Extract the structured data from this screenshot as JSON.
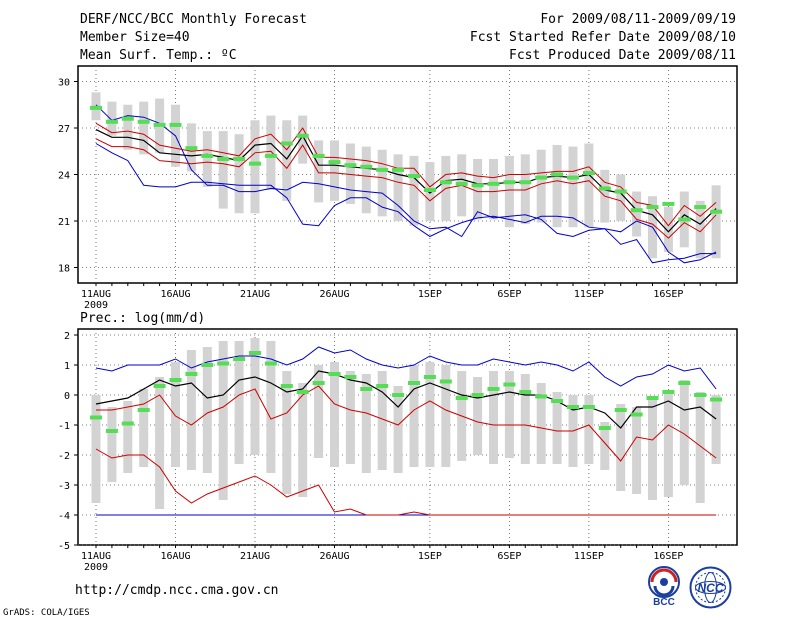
{
  "header": {
    "title": "DERF/NCC/BCC Monthly Forecast",
    "member_size": "Member Size=40",
    "variable": "Mean Surf. Temp.: ºC",
    "period": "For 2009/08/11-2009/09/19",
    "start_date": "Fcst Started Refer Date 2009/08/10",
    "produced_date": "Fcst Produced Date 2009/08/11"
  },
  "footer": {
    "url": "http://cmdp.ncc.cma.gov.cn",
    "grads": "GrADS: COLA/IGES",
    "logo_bcc": "BCC",
    "logo_ncc": "NCC"
  },
  "colors": {
    "max_min": "#0000cc",
    "spread": "#cc0000",
    "mean": "#000000",
    "box": "#d3d3d3",
    "obs": "#55dd55"
  },
  "chart_data": [
    {
      "type": "line",
      "title": "Mean Surf. Temp.: ºC",
      "ylim": [
        17,
        31
      ],
      "yticks": [
        18,
        21,
        24,
        27,
        30
      ],
      "xlabels": [
        "11AUG",
        "16AUG",
        "21AUG",
        "26AUG",
        "1SEP",
        "6SEP",
        "11SEP",
        "16SEP"
      ],
      "xlabel_year": "2009",
      "xlabel_idx": [
        0,
        5,
        10,
        15,
        21,
        26,
        31,
        36
      ],
      "n_days": 40,
      "series": [
        {
          "name": "max",
          "values": [
            28.5,
            27.5,
            27.8,
            27.7,
            27.3,
            26.5,
            24.3,
            23.3,
            23.3,
            22.9,
            22.9,
            23.1,
            23.0,
            23.5,
            23.4,
            23.2,
            23.0,
            22.9,
            22.8,
            22.0,
            21.0,
            20.5,
            20.6,
            20.0,
            21.6,
            21.2,
            21.3,
            21.4,
            21.1,
            20.2,
            20.0,
            20.4,
            20.5,
            20.3,
            21.0,
            20.6,
            19.0,
            18.3,
            18.5,
            19.0
          ]
        },
        {
          "name": "spread_high",
          "values": [
            27.3,
            26.7,
            26.8,
            26.6,
            25.9,
            25.7,
            25.5,
            25.6,
            25.4,
            25.2,
            26.3,
            26.6,
            25.6,
            27.0,
            25.1,
            25.1,
            25.0,
            24.9,
            24.7,
            24.4,
            24.4,
            23.2,
            24.0,
            24.1,
            23.9,
            23.8,
            24.0,
            24.0,
            24.1,
            24.2,
            24.2,
            24.5,
            23.5,
            23.2,
            22.2,
            22.0,
            20.7,
            22.0,
            21.3,
            22.2
          ]
        },
        {
          "name": "mean",
          "values": [
            26.9,
            26.4,
            26.4,
            26.2,
            25.4,
            25.3,
            25.2,
            25.3,
            25.1,
            24.9,
            25.9,
            26.0,
            25.0,
            26.5,
            24.6,
            24.6,
            24.5,
            24.4,
            24.3,
            24.0,
            23.8,
            22.8,
            23.6,
            23.7,
            23.4,
            23.4,
            23.5,
            23.5,
            23.8,
            23.9,
            23.8,
            24.0,
            23.0,
            22.8,
            21.7,
            21.4,
            20.3,
            21.4,
            20.8,
            21.8
          ]
        },
        {
          "name": "spread_low",
          "values": [
            26.3,
            25.8,
            25.8,
            25.6,
            24.9,
            24.8,
            24.7,
            24.8,
            24.7,
            24.5,
            25.4,
            25.5,
            24.4,
            25.9,
            24.1,
            24.1,
            24.0,
            23.9,
            23.8,
            23.5,
            23.3,
            22.3,
            23.1,
            23.3,
            22.9,
            22.9,
            23.0,
            23.0,
            23.4,
            23.6,
            23.4,
            23.6,
            22.6,
            22.3,
            21.1,
            20.8,
            19.9,
            20.9,
            20.3,
            21.4
          ]
        },
        {
          "name": "min",
          "values": [
            26.0,
            25.4,
            24.9,
            23.3,
            23.2,
            23.2,
            23.5,
            23.5,
            23.4,
            23.3,
            23.3,
            23.3,
            22.5,
            20.8,
            20.7,
            22.0,
            22.5,
            22.5,
            21.9,
            21.6,
            20.7,
            20.0,
            20.5,
            20.9,
            21.2,
            21.3,
            21.1,
            20.9,
            21.3,
            21.3,
            21.2,
            20.6,
            20.5,
            19.5,
            19.8,
            18.3,
            18.5,
            18.6,
            18.9,
            18.9
          ]
        },
        {
          "name": "box_top",
          "values": [
            29.3,
            28.7,
            28.5,
            28.7,
            28.9,
            28.5,
            27.3,
            26.8,
            26.8,
            26.6,
            27.5,
            27.8,
            27.5,
            27.8,
            26.2,
            26.2,
            26.0,
            25.8,
            25.6,
            25.3,
            25.2,
            24.8,
            25.2,
            25.3,
            25.0,
            25.0,
            25.2,
            25.3,
            25.6,
            25.9,
            25.8,
            26.0,
            24.3,
            24.0,
            22.9,
            22.6,
            21.9,
            22.9,
            22.3,
            23.3
          ]
        },
        {
          "name": "box_bottom",
          "values": [
            27.5,
            26.5,
            25.6,
            25.3,
            25.4,
            24.5,
            24.2,
            23.2,
            21.8,
            21.5,
            21.5,
            23.0,
            22.3,
            24.7,
            22.2,
            22.3,
            22.1,
            21.5,
            21.3,
            21.0,
            20.7,
            21.0,
            21.0,
            21.3,
            21.1,
            21.1,
            20.6,
            20.8,
            20.9,
            20.6,
            20.6,
            20.6,
            20.9,
            21.0,
            20.0,
            18.6,
            19.0,
            19.3,
            18.6,
            18.6
          ]
        },
        {
          "name": "obs",
          "values": [
            28.3,
            27.4,
            27.6,
            27.4,
            27.2,
            27.2,
            25.7,
            25.2,
            25.0,
            25.0,
            24.7,
            25.2,
            26.0,
            26.5,
            25.2,
            24.8,
            24.6,
            24.5,
            24.3,
            24.3,
            23.9,
            23.0,
            23.5,
            23.4,
            23.3,
            23.4,
            23.5,
            23.5,
            23.8,
            24.0,
            23.8,
            24.1,
            23.1,
            22.9,
            21.7,
            21.9,
            22.1,
            21.1,
            21.9,
            21.6
          ]
        }
      ]
    },
    {
      "type": "line",
      "title": "Prec.: log(mm/d)",
      "ylim": [
        -5,
        2.2
      ],
      "yticks": [
        -5,
        -4,
        -3,
        -2,
        -1,
        0,
        1,
        2
      ],
      "xlabels": [
        "11AUG",
        "16AUG",
        "21AUG",
        "26AUG",
        "1SEP",
        "6SEP",
        "11SEP",
        "16SEP"
      ],
      "xlabel_year": "2009",
      "xlabel_idx": [
        0,
        5,
        10,
        15,
        21,
        26,
        31,
        36
      ],
      "n_days": 40,
      "series": [
        {
          "name": "max",
          "values": [
            0.9,
            0.8,
            1.0,
            1.0,
            1.0,
            1.2,
            0.9,
            1.1,
            1.2,
            1.3,
            1.3,
            1.2,
            1.0,
            1.2,
            1.6,
            1.4,
            1.5,
            1.2,
            1.0,
            0.9,
            1.0,
            1.3,
            1.1,
            1.0,
            1.0,
            1.2,
            1.1,
            1.0,
            1.1,
            1.0,
            0.8,
            1.1,
            0.6,
            0.3,
            0.6,
            0.7,
            1.0,
            0.8,
            0.9,
            0.2
          ]
        },
        {
          "name": "mean",
          "values": [
            -0.3,
            -0.2,
            -0.1,
            0.2,
            0.5,
            0.3,
            0.4,
            -0.1,
            0.0,
            0.5,
            0.6,
            0.4,
            0.1,
            0.2,
            0.8,
            0.7,
            0.5,
            0.4,
            0.1,
            -0.4,
            0.2,
            0.4,
            0.2,
            0.0,
            -0.1,
            0.0,
            0.1,
            0.0,
            0.0,
            -0.2,
            -0.5,
            -0.4,
            -0.6,
            -1.1,
            -0.4,
            -0.4,
            -0.2,
            -0.5,
            -0.4,
            -0.8
          ]
        },
        {
          "name": "spread_high",
          "values": [
            -0.5,
            -0.5,
            -0.4,
            -0.3,
            0.0,
            -0.7,
            -1.0,
            -0.6,
            -0.4,
            0.0,
            0.2,
            -0.8,
            -0.6,
            0.0,
            0.3,
            -0.3,
            -0.5,
            -0.6,
            -0.8,
            -1.0,
            -0.5,
            -0.2,
            -0.5,
            -0.7,
            -0.9,
            -1.0,
            -1.0,
            -1.0,
            -1.1,
            -1.2,
            -1.2,
            -1.0,
            -1.6,
            -2.2,
            -1.4,
            -1.5,
            -1.0,
            -1.3,
            -1.7,
            -2.1
          ]
        },
        {
          "name": "spread_low",
          "values": [
            -1.8,
            -2.1,
            -2.0,
            -2.0,
            -2.4,
            -3.2,
            -3.6,
            -3.3,
            -3.1,
            -2.9,
            -2.7,
            -3.0,
            -3.4,
            -3.2,
            -3.0,
            -3.9,
            -3.8,
            -4.0,
            -4.0,
            -4.0,
            -3.9,
            -4.0,
            -4.0,
            -4.0,
            -4.0,
            -4.0,
            -4.0,
            -4.0,
            -4.0,
            -4.0,
            -4.0,
            -4.0,
            -4.0,
            -4.0,
            -4.0,
            -4.0,
            -4.0,
            -4.0,
            -4.0,
            -4.0
          ]
        },
        {
          "name": "min",
          "values": [
            -4.0,
            -4.0,
            -4.0,
            -4.0,
            -4.0,
            -4.0,
            -4.0,
            -4.0,
            -4.0,
            -4.0,
            -4.0,
            -4.0,
            -4.0,
            -4.0,
            -4.0,
            -4.0,
            -4.0,
            -4.0,
            -4.0,
            -4.0,
            -4.0,
            -4.0,
            -4.0,
            -4.0,
            -4.0,
            -4.0,
            -4.0,
            -4.0,
            -4.0,
            -4.0,
            -4.0,
            -4.0,
            -4.0,
            -4.0,
            -4.0,
            -4.0,
            -4.0,
            -4.0,
            -4.0,
            -4.0
          ]
        },
        {
          "name": "box_top",
          "values": [
            0.0,
            -0.4,
            -0.2,
            0.2,
            0.6,
            1.1,
            1.5,
            1.6,
            1.8,
            1.8,
            1.9,
            1.8,
            0.8,
            0.4,
            1.0,
            1.1,
            0.8,
            0.7,
            0.8,
            0.3,
            1.0,
            1.1,
            1.0,
            0.8,
            0.6,
            0.8,
            0.8,
            0.7,
            0.4,
            0.1,
            0.0,
            0.0,
            -0.9,
            -0.3,
            -0.4,
            -0.1,
            0.1,
            0.5,
            0.1,
            0.0
          ]
        },
        {
          "name": "box_bottom",
          "values": [
            -3.6,
            -2.9,
            -2.6,
            -2.4,
            -3.8,
            -2.4,
            -2.5,
            -2.6,
            -3.5,
            -2.3,
            -2.0,
            -2.6,
            -3.3,
            -3.4,
            -2.1,
            -2.4,
            -2.3,
            -2.6,
            -2.5,
            -2.6,
            -2.4,
            -2.4,
            -2.4,
            -2.2,
            -2.0,
            -2.3,
            -2.1,
            -2.3,
            -2.3,
            -2.3,
            -2.4,
            -2.3,
            -2.5,
            -3.2,
            -3.3,
            -3.5,
            -3.4,
            -3.0,
            -3.6,
            -2.3
          ]
        },
        {
          "name": "obs",
          "values": [
            -0.75,
            -1.2,
            -0.95,
            -0.5,
            0.3,
            0.5,
            0.7,
            1.0,
            1.05,
            1.2,
            1.4,
            1.05,
            0.3,
            0.1,
            0.4,
            0.7,
            0.6,
            0.2,
            0.3,
            0.0,
            0.4,
            0.6,
            0.45,
            -0.1,
            0.0,
            0.2,
            0.35,
            0.1,
            -0.05,
            -0.2,
            -0.4,
            -0.4,
            -1.1,
            -0.5,
            -0.65,
            -0.1,
            0.1,
            0.4,
            0.0,
            -0.15
          ]
        }
      ]
    }
  ]
}
